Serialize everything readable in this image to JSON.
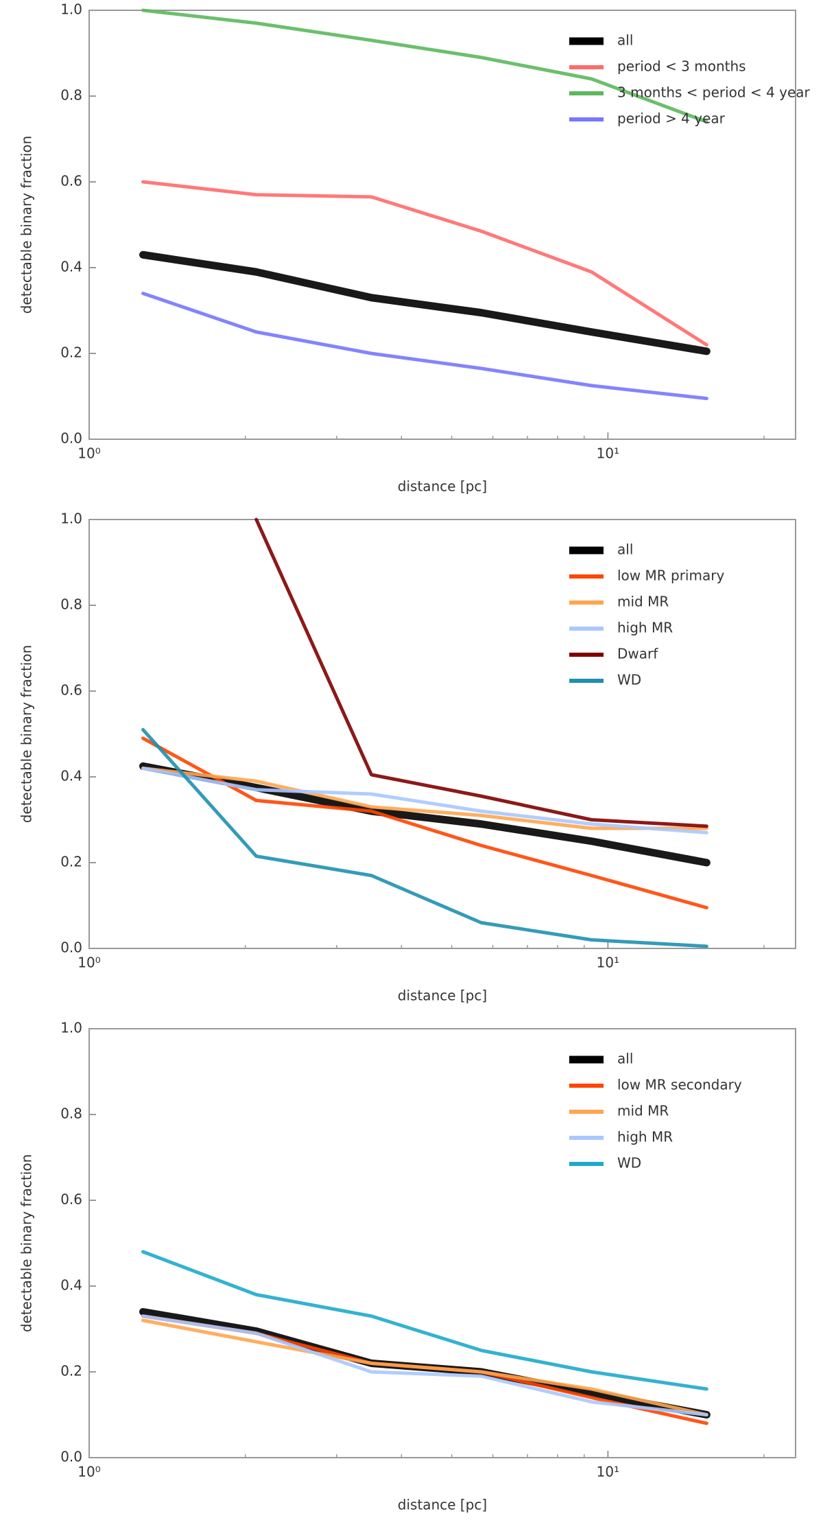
{
  "chart_data": [
    {
      "type": "line",
      "xlabel": "distance [pc]",
      "ylabel": "detectable binary fraction",
      "log_x": true,
      "legend": "upper right",
      "xlim": [
        1,
        23
      ],
      "xticks": [
        {
          "value": 1,
          "label": "10⁰"
        },
        {
          "value": 10,
          "label": "10¹"
        }
      ],
      "ylim": [
        0,
        1
      ],
      "yticks": [
        {
          "value": 0,
          "label": "0.0"
        },
        0.2,
        0.4,
        0.6,
        0.8,
        {
          "value": 1,
          "label": "1.0"
        }
      ],
      "x": [
        1.27,
        2.1,
        3.5,
        5.7,
        9.3,
        15.5
      ],
      "series": [
        {
          "name": "all",
          "color": "#000000",
          "values": [
            0.43,
            0.39,
            0.33,
            0.295,
            0.25,
            0.205
          ]
        },
        {
          "name": "period < 3 months",
          "color": "#ff6a6a",
          "values": [
            0.6,
            0.57,
            0.565,
            0.485,
            0.39,
            0.22
          ]
        },
        {
          "name": "3 months < period < 4 year",
          "color": "#5cb85c",
          "values": [
            1.0,
            0.97,
            0.93,
            0.89,
            0.84,
            0.74
          ]
        },
        {
          "name": "period > 4 year",
          "color": "#7777ff",
          "values": [
            0.34,
            0.25,
            0.2,
            0.165,
            0.125,
            0.095
          ]
        }
      ]
    },
    {
      "type": "line",
      "xlabel": "distance [pc]",
      "ylabel": "detectable binary fraction",
      "log_x": true,
      "legend": "upper right",
      "xlim": [
        1,
        23
      ],
      "xticks": [
        {
          "value": 1,
          "label": "10⁰"
        },
        {
          "value": 10,
          "label": "10¹"
        }
      ],
      "ylim": [
        0,
        1
      ],
      "yticks": [
        {
          "value": 0,
          "label": "0.0"
        },
        0.2,
        0.4,
        0.6,
        0.8,
        {
          "value": 1,
          "label": "1.0"
        }
      ],
      "x": [
        1.27,
        2.1,
        3.5,
        5.7,
        9.3,
        15.5
      ],
      "series": [
        {
          "name": "all",
          "color": "#000000",
          "values": [
            0.425,
            0.375,
            0.32,
            0.29,
            0.25,
            0.2
          ]
        },
        {
          "name": "low MR primary",
          "color": "#ff4500",
          "values": [
            0.49,
            0.345,
            0.32,
            0.24,
            0.17,
            0.095
          ]
        },
        {
          "name": "mid MR",
          "color": "#ffa54f",
          "values": [
            0.42,
            0.39,
            0.33,
            0.31,
            0.28,
            0.28
          ]
        },
        {
          "name": "high MR",
          "color": "#a8c8ff",
          "values": [
            0.42,
            0.37,
            0.36,
            0.32,
            0.29,
            0.27
          ]
        },
        {
          "name": "Dwarf",
          "color": "#800000",
          "values": [
            null,
            1.0,
            0.405,
            0.355,
            0.3,
            0.285
          ]
        },
        {
          "name": "WD",
          "color": "#1e90b0",
          "values": [
            0.51,
            0.215,
            0.17,
            0.06,
            0.02,
            0.005
          ]
        }
      ]
    },
    {
      "type": "line",
      "xlabel": "distance [pc]",
      "ylabel": "detectable binary fraction",
      "log_x": true,
      "legend": "upper right",
      "xlim": [
        1,
        23
      ],
      "xticks": [
        {
          "value": 1,
          "label": "10⁰"
        },
        {
          "value": 10,
          "label": "10¹"
        }
      ],
      "ylim": [
        0,
        1
      ],
      "yticks": [
        {
          "value": 0,
          "label": "0.0"
        },
        0.2,
        0.4,
        0.6,
        0.8,
        {
          "value": 1,
          "label": "1.0"
        }
      ],
      "x": [
        1.27,
        2.1,
        3.5,
        5.7,
        9.3,
        15.5
      ],
      "series": [
        {
          "name": "all",
          "color": "#000000",
          "values": [
            0.34,
            0.295,
            0.22,
            0.2,
            0.15,
            0.1
          ]
        },
        {
          "name": "low MR secondary",
          "color": "#ff4500",
          "values": [
            0.33,
            0.29,
            0.22,
            0.2,
            0.14,
            0.08
          ]
        },
        {
          "name": "mid MR",
          "color": "#ffa54f",
          "values": [
            0.32,
            0.27,
            0.22,
            0.2,
            0.16,
            0.1
          ]
        },
        {
          "name": "high MR",
          "color": "#a8c8ff",
          "values": [
            0.33,
            0.29,
            0.2,
            0.19,
            0.13,
            0.1
          ]
        },
        {
          "name": "WD",
          "color": "#1eaacc",
          "values": [
            0.48,
            0.38,
            0.33,
            0.25,
            0.2,
            0.16
          ]
        }
      ]
    }
  ]
}
